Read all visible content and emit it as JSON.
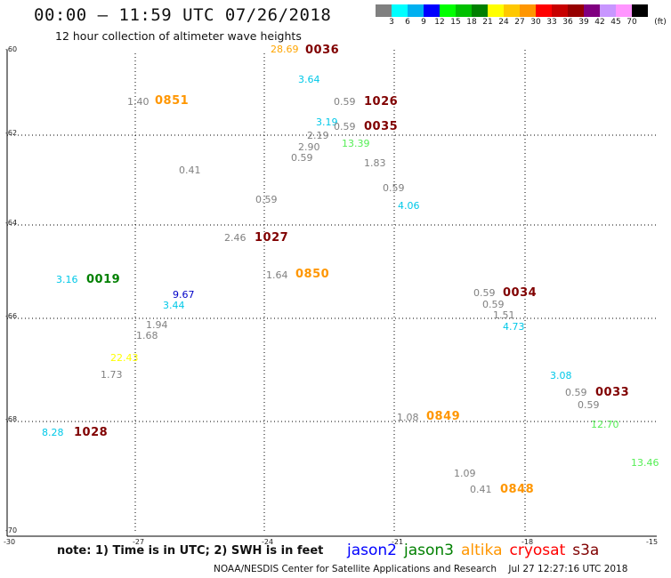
{
  "header": {
    "title": "00:00 – 11:59 UTC 07/26/2018",
    "subtitle": "12 hour collection of altimeter wave heights"
  },
  "legend": {
    "colors": [
      "#808080",
      "#00ffff",
      "#00b0f0",
      "#0000ff",
      "#00ff00",
      "#00c000",
      "#008000",
      "#ffff00",
      "#ffc800",
      "#ff9600",
      "#ff0000",
      "#c80000",
      "#960000",
      "#800080",
      "#c896ff",
      "#ff96ff",
      "#000000"
    ],
    "ticks": [
      "3",
      "6",
      "9",
      "12",
      "15",
      "18",
      "21",
      "24",
      "27",
      "30",
      "33",
      "36",
      "39",
      "42",
      "45",
      "70"
    ],
    "unit": "(ft)"
  },
  "map": {
    "lat_labels": [
      "-60",
      "-62",
      "-64",
      "-66",
      "-68",
      "-70"
    ],
    "lon_labels": [
      "-30",
      "-27",
      "-24",
      "-21",
      "-18",
      "-15"
    ]
  },
  "observations": [
    {
      "t": "28.69",
      "c": "#ffa500"
    },
    {
      "t": "0036",
      "c": "#800000",
      "time": true
    },
    {
      "t": "3.64",
      "c": "#00c8e8"
    },
    {
      "t": "1.40",
      "c": "#808080"
    },
    {
      "t": "0851",
      "c": "#ff9600",
      "time": true
    },
    {
      "t": "0.59",
      "c": "#808080"
    },
    {
      "t": "1026",
      "c": "#800000",
      "time": true
    },
    {
      "t": "3.19",
      "c": "#00c8e8"
    },
    {
      "t": "0.59",
      "c": "#808080"
    },
    {
      "t": "0035",
      "c": "#800000",
      "time": true
    },
    {
      "t": "2.19",
      "c": "#808080"
    },
    {
      "t": "2.90",
      "c": "#808080"
    },
    {
      "t": "13.39",
      "c": "#55ee55"
    },
    {
      "t": "0.59",
      "c": "#808080"
    },
    {
      "t": "1.83",
      "c": "#808080"
    },
    {
      "t": "0.41",
      "c": "#808080"
    },
    {
      "t": "0.59",
      "c": "#808080"
    },
    {
      "t": "0.59",
      "c": "#808080"
    },
    {
      "t": "4.06",
      "c": "#00c8e8"
    },
    {
      "t": "2.46",
      "c": "#808080"
    },
    {
      "t": "1027",
      "c": "#800000",
      "time": true
    },
    {
      "t": "1.64",
      "c": "#808080"
    },
    {
      "t": "0850",
      "c": "#ff9600",
      "time": true
    },
    {
      "t": "3.16",
      "c": "#00c8e8"
    },
    {
      "t": "0019",
      "c": "#008000",
      "time": true
    },
    {
      "t": "9.67",
      "c": "#0000c8"
    },
    {
      "t": "3.44",
      "c": "#00c8e8"
    },
    {
      "t": "0.59",
      "c": "#808080"
    },
    {
      "t": "0034",
      "c": "#800000",
      "time": true
    },
    {
      "t": "0.59",
      "c": "#808080"
    },
    {
      "t": "1.51",
      "c": "#808080"
    },
    {
      "t": "4.73",
      "c": "#00c8e8"
    },
    {
      "t": "1.94",
      "c": "#808080"
    },
    {
      "t": "1.68",
      "c": "#808080"
    },
    {
      "t": "22.43",
      "c": "#ffff00"
    },
    {
      "t": "1.73",
      "c": "#808080"
    },
    {
      "t": "3.08",
      "c": "#00c8e8"
    },
    {
      "t": "0.59",
      "c": "#808080"
    },
    {
      "t": "0033",
      "c": "#800000",
      "time": true
    },
    {
      "t": "0.59",
      "c": "#808080"
    },
    {
      "t": "1.08",
      "c": "#808080"
    },
    {
      "t": "0849",
      "c": "#ff9600",
      "time": true
    },
    {
      "t": "12.70",
      "c": "#55ee55"
    },
    {
      "t": "8.28",
      "c": "#00c8e8"
    },
    {
      "t": "1028",
      "c": "#800000",
      "time": true
    },
    {
      "t": "13.46",
      "c": "#55ee55"
    },
    {
      "t": "1.09",
      "c": "#808080"
    },
    {
      "t": "0.41",
      "c": "#808080"
    },
    {
      "t": "0848",
      "c": "#ff9600",
      "time": true
    }
  ],
  "footer": {
    "note": "note: 1) Time is in UTC; 2) SWH is in feet",
    "satellites": [
      {
        "name": "jason2",
        "color": "#0000ff"
      },
      {
        "name": "jason3",
        "color": "#008000"
      },
      {
        "name": "altika",
        "color": "#ff9600"
      },
      {
        "name": "cryosat",
        "color": "#ff0000"
      },
      {
        "name": "s3a",
        "color": "#800000"
      }
    ],
    "credit": "NOAA/NESDIS Center for Satellite Applications and Research    Jul 27 12:27:16 UTC 2018"
  }
}
